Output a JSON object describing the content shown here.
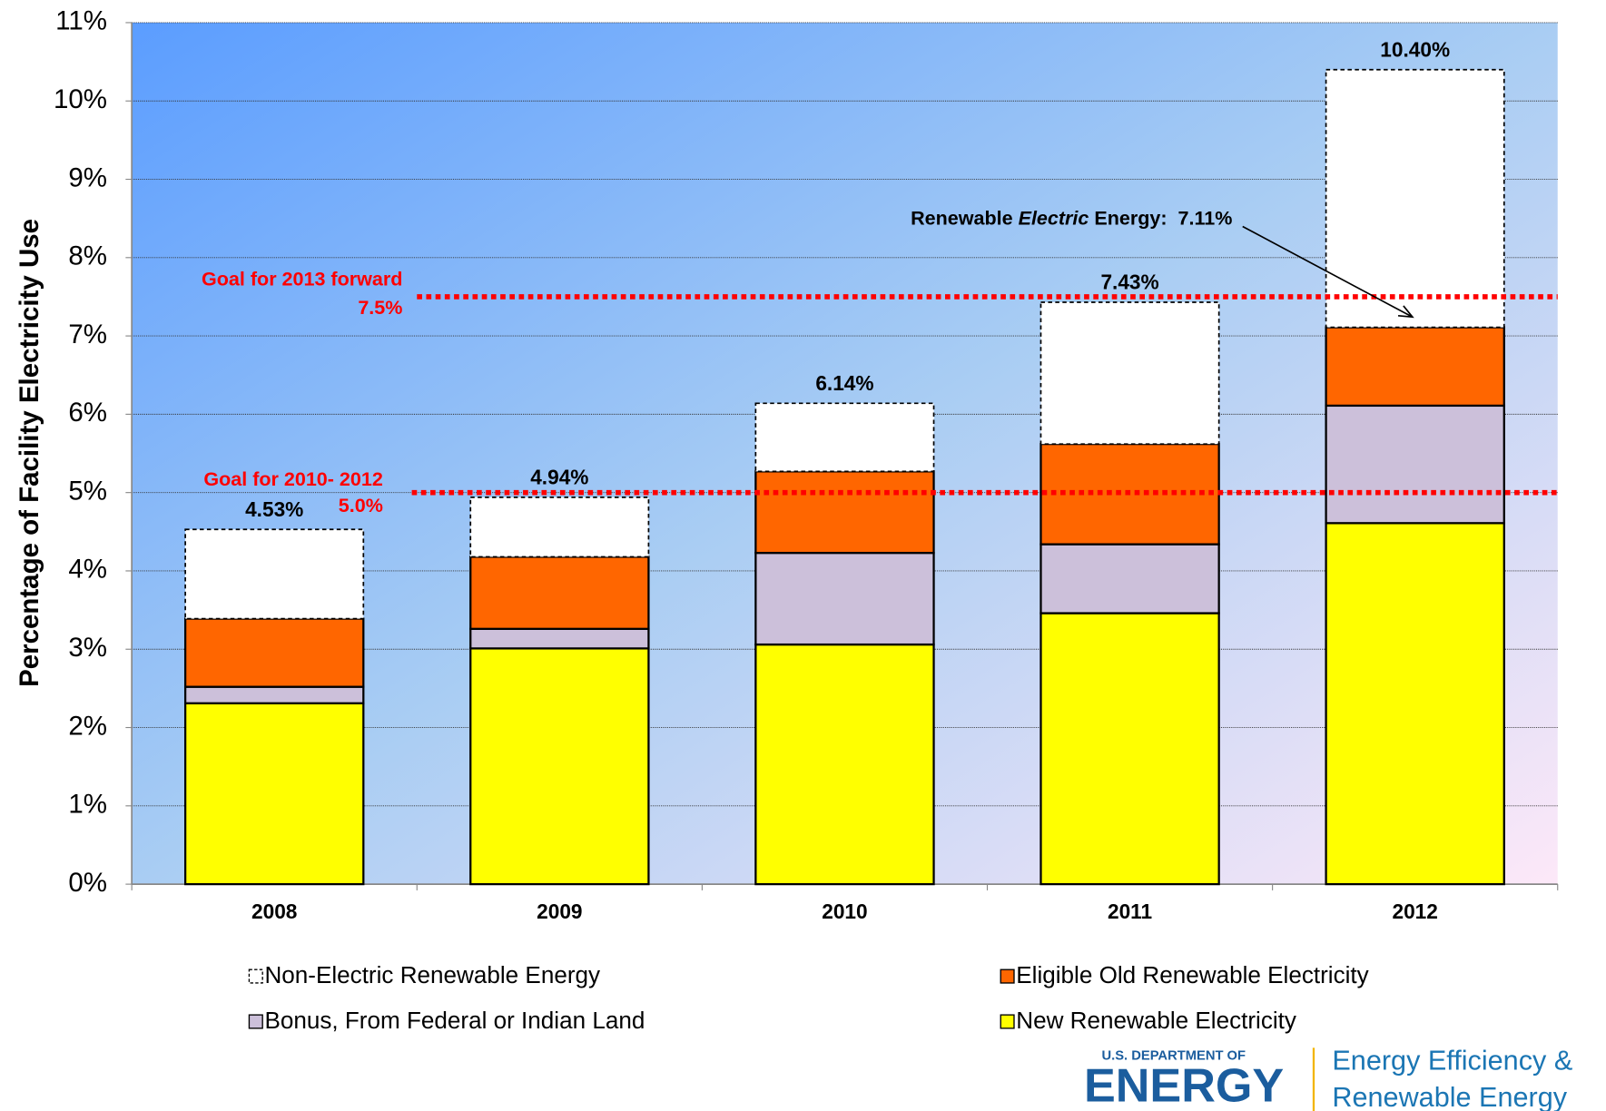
{
  "chart_data": {
    "type": "stacked_bar",
    "y_label": "Percentage of Facility Electricity Use",
    "categories": [
      "2008",
      "2009",
      "2010",
      "2011",
      "2012"
    ],
    "series": [
      {
        "name": "New Renewable Electricity",
        "color": "#ffff00",
        "values": [
          2.31,
          3.01,
          3.06,
          3.46,
          4.61
        ]
      },
      {
        "name": "Bonus, From Federal or Indian Land",
        "color": "#ccc0da",
        "values": [
          0.21,
          0.25,
          1.17,
          0.88,
          1.5
        ]
      },
      {
        "name": "Eligible Old Renewable Electricity",
        "color": "#ff6600",
        "values": [
          0.87,
          0.92,
          1.04,
          1.28,
          1.0
        ]
      },
      {
        "name": "Non-Electric Renewable Energy",
        "color": "#ffffff",
        "dashed": true,
        "values": [
          1.14,
          0.76,
          0.87,
          1.81,
          3.29
        ]
      }
    ],
    "totals": [
      4.53,
      4.94,
      6.14,
      7.43,
      10.4
    ],
    "total_labels": [
      "4.53%",
      "4.94%",
      "6.14%",
      "7.43%",
      "10.40%"
    ],
    "ylim": [
      0,
      11
    ],
    "yticks": [
      {
        "value": 0,
        "label": "0%"
      },
      {
        "value": 1,
        "label": "1%"
      },
      {
        "value": 2,
        "label": "2%"
      },
      {
        "value": 3,
        "label": "3%"
      },
      {
        "value": 4,
        "label": "4%"
      },
      {
        "value": 5,
        "label": "5%"
      },
      {
        "value": 6,
        "label": "6%"
      },
      {
        "value": 7,
        "label": "7%"
      },
      {
        "value": 8,
        "label": "8%"
      },
      {
        "value": 9,
        "label": "9%"
      },
      {
        "value": 10,
        "label": "10%"
      },
      {
        "value": 11,
        "label": "11%"
      }
    ],
    "grid": true,
    "reference_lines": [
      {
        "label": "Goal for 2013 forward",
        "value": 7.5,
        "value_label": "7.5%",
        "color": "#ff0000"
      },
      {
        "label": "Goal for 2010- 2012",
        "value": 5.0,
        "value_label": "5.0%",
        "color": "#ff0000"
      }
    ],
    "annotation": {
      "parts": [
        "Renewable ",
        "Electric",
        " Energy:  7.11%"
      ],
      "value": 7.11
    }
  },
  "logo": {
    "top": "U.S. DEPARTMENT OF",
    "main": "ENERGY",
    "line1": "Energy Efficiency &",
    "line2": "Renewable Energy"
  }
}
